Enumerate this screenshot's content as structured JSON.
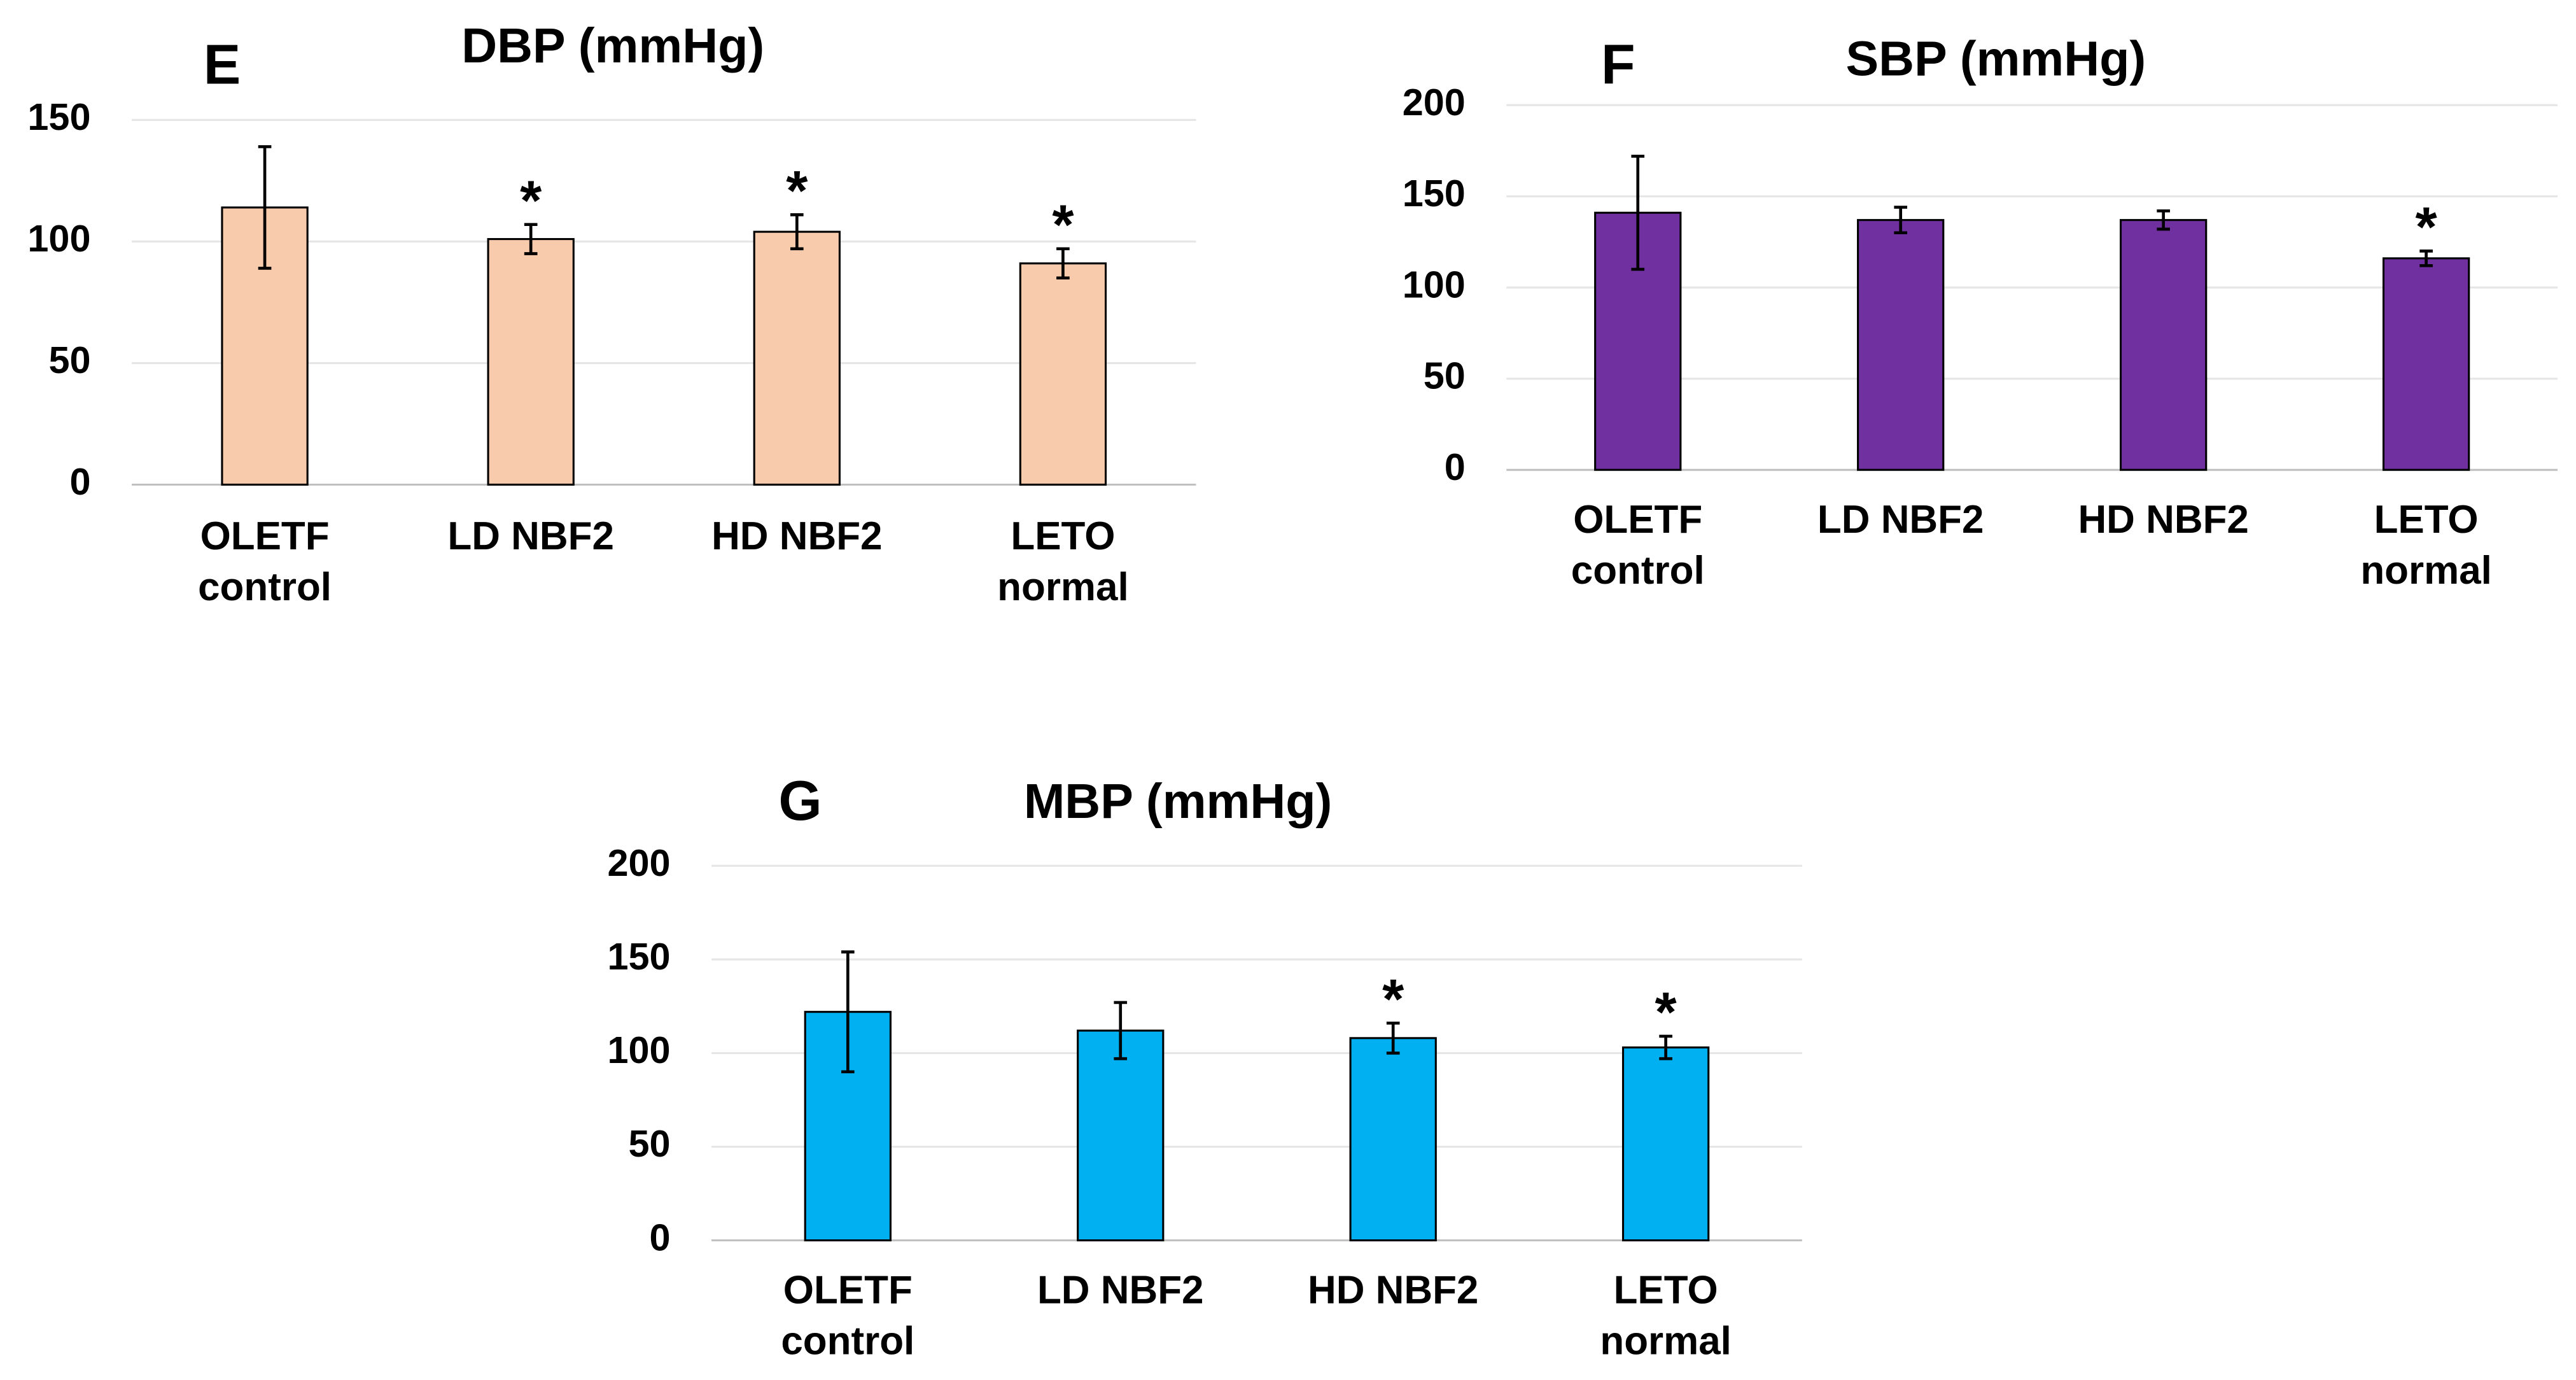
{
  "chart_data": [
    {
      "type": "bar",
      "panel": "E",
      "title": "DBP (mmHg)",
      "categories": [
        [
          "OLETF",
          "control"
        ],
        [
          "LD NBF2"
        ],
        [
          "HD NBF2"
        ],
        [
          "LETO",
          "normal"
        ]
      ],
      "values": [
        114,
        101,
        104,
        91
      ],
      "errors": [
        25,
        6,
        7,
        6
      ],
      "significance": [
        null,
        "*",
        "*",
        "*"
      ],
      "color": "#f8cbad",
      "ylim": [
        0,
        150
      ],
      "yticks": [
        0,
        50,
        100,
        150
      ],
      "grid": true
    },
    {
      "type": "bar",
      "panel": "F",
      "title": "SBP (mmHg)",
      "categories": [
        [
          "OLETF",
          "control"
        ],
        [
          "LD NBF2"
        ],
        [
          "HD NBF2"
        ],
        [
          "LETO",
          "normal"
        ]
      ],
      "values": [
        141,
        137,
        137,
        116
      ],
      "errors": [
        31,
        7,
        5,
        4
      ],
      "significance": [
        null,
        null,
        null,
        "*"
      ],
      "color": "#7030a0",
      "ylim": [
        0,
        200
      ],
      "yticks": [
        0,
        50,
        100,
        150,
        200
      ],
      "grid": true
    },
    {
      "type": "bar",
      "panel": "G",
      "title": "MBP (mmHg)",
      "categories": [
        [
          "OLETF",
          "control"
        ],
        [
          "LD NBF2"
        ],
        [
          "HD NBF2"
        ],
        [
          "LETO",
          "normal"
        ]
      ],
      "values": [
        122,
        112,
        108,
        103
      ],
      "errors": [
        32,
        15,
        8,
        6
      ],
      "significance": [
        null,
        null,
        "*",
        "*"
      ],
      "color": "#00b0f0",
      "ylim": [
        0,
        200
      ],
      "yticks": [
        0,
        50,
        100,
        150,
        200
      ],
      "grid": true
    }
  ]
}
